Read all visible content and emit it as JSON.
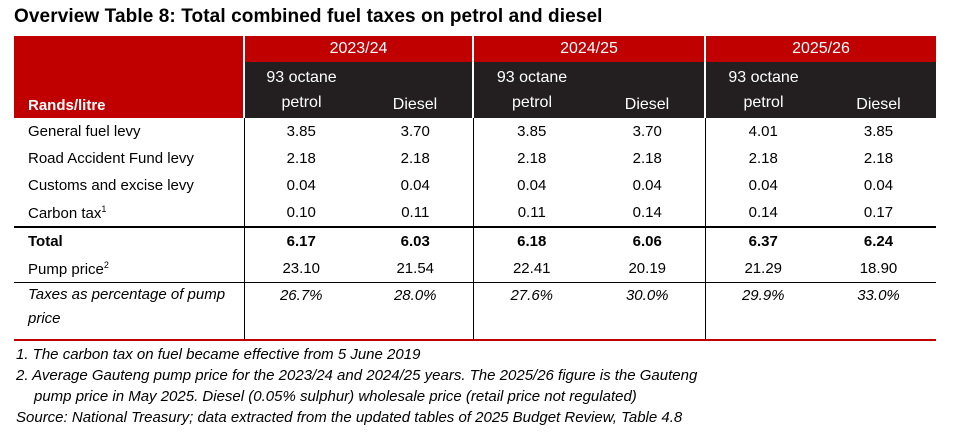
{
  "title": "Overview Table 8: Total combined fuel taxes on petrol and diesel",
  "header": {
    "years": [
      "2023/24",
      "2024/25",
      "2025/26"
    ],
    "row_label": "Rands/litre",
    "petrol_line1": "93 octane",
    "petrol_line2": "petrol",
    "diesel": "Diesel"
  },
  "rows": [
    {
      "label": "General fuel levy",
      "sup": "",
      "values": [
        "3.85",
        "3.70",
        "3.85",
        "3.70",
        "4.01",
        "3.85"
      ]
    },
    {
      "label": "Road Accident Fund levy",
      "sup": "",
      "values": [
        "2.18",
        "2.18",
        "2.18",
        "2.18",
        "2.18",
        "2.18"
      ]
    },
    {
      "label": "Customs and excise levy",
      "sup": "",
      "values": [
        "0.04",
        "0.04",
        "0.04",
        "0.04",
        "0.04",
        "0.04"
      ]
    },
    {
      "label": "Carbon tax",
      "sup": "1",
      "values": [
        "0.10",
        "0.11",
        "0.11",
        "0.14",
        "0.14",
        "0.17"
      ]
    }
  ],
  "total": {
    "label": "Total",
    "values": [
      "6.17",
      "6.03",
      "6.18",
      "6.06",
      "6.37",
      "6.24"
    ]
  },
  "pump": {
    "label": "Pump price",
    "sup": "2",
    "values": [
      "23.10",
      "21.54",
      "22.41",
      "20.19",
      "21.29",
      "18.90"
    ]
  },
  "pct": {
    "label": "Taxes as percentage of pump price",
    "values": [
      "26.7%",
      "28.0%",
      "27.6%",
      "30.0%",
      "29.9%",
      "33.0%"
    ]
  },
  "notes": [
    "1. The carbon tax on fuel became effective from 5 June 2019",
    "2. Average Gauteng pump price for the 2023/24 and 2024/25 years. The 2025/26 figure is the Gauteng",
    "pump price in May 2025. Diesel (0.05% sulphur) wholesale price (retail price not regulated)",
    "Source: National Treasury; data extracted from the updated tables of 2025 Budget Review, Table 4.8"
  ],
  "colors": {
    "header_red": "#c00000",
    "header_dark": "#231f20",
    "rule_red": "#c00000"
  }
}
